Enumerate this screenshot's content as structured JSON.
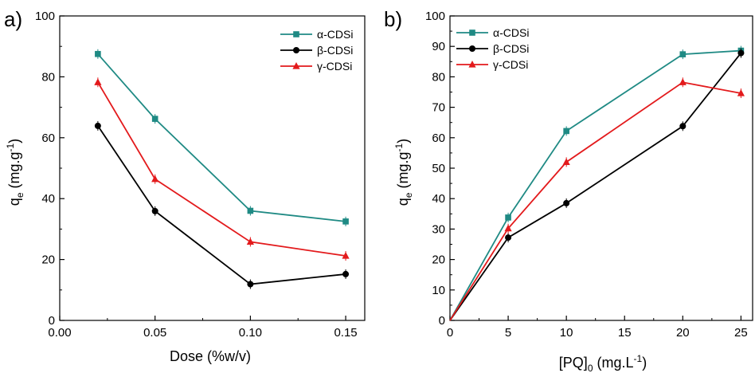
{
  "chart_data": [
    {
      "type": "line",
      "panel_label": "a)",
      "title": "",
      "xlabel": "Dose (%w/v)",
      "ylabel_main": "q",
      "ylabel_sub": "e",
      "ylabel_rest": " (mg.g",
      "ylabel_sup": "-1",
      "ylabel_close": ")",
      "xlim": [
        0.0,
        0.16
      ],
      "ylim": [
        0,
        100
      ],
      "xticks": [
        0.0,
        0.05,
        0.1,
        0.15
      ],
      "xtick_labels": [
        "0.00",
        "0.05",
        "0.10",
        "0.15"
      ],
      "yticks": [
        0,
        20,
        40,
        60,
        80,
        100
      ],
      "ytick_labels": [
        "0",
        "20",
        "40",
        "60",
        "80",
        "100"
      ],
      "legend_position": "top-right",
      "grid": false,
      "x": [
        0.02,
        0.05,
        0.1,
        0.15
      ],
      "series": [
        {
          "name": "α-CDSi",
          "color": "#1f8a84",
          "marker": "square",
          "values": [
            87.5,
            66.2,
            36.0,
            32.5
          ]
        },
        {
          "name": "β-CDSi",
          "color": "#000000",
          "marker": "circle",
          "values": [
            63.9,
            35.9,
            11.9,
            15.2
          ]
        },
        {
          "name": "γ-CDSi",
          "color": "#e31a1c",
          "marker": "triangle",
          "values": [
            78.2,
            46.4,
            25.8,
            21.2
          ]
        }
      ]
    },
    {
      "type": "line",
      "panel_label": "b)",
      "title": "",
      "xlabel_main": "[PQ]",
      "xlabel_sub": "0",
      "xlabel_rest": " (mg.L",
      "xlabel_sup": "-1",
      "xlabel_close": ")",
      "ylabel_main": "q",
      "ylabel_sub": "e",
      "ylabel_rest": " (mg.g",
      "ylabel_sup": "-1",
      "ylabel_close": ")",
      "xlim": [
        0,
        26
      ],
      "ylim": [
        0,
        100
      ],
      "xticks": [
        0,
        5,
        10,
        15,
        20,
        25
      ],
      "xtick_labels": [
        "0",
        "5",
        "10",
        "15",
        "20",
        "25"
      ],
      "yticks": [
        0,
        10,
        20,
        30,
        40,
        50,
        60,
        70,
        80,
        90,
        100
      ],
      "ytick_labels": [
        "0",
        "10",
        "20",
        "30",
        "40",
        "50",
        "60",
        "70",
        "80",
        "90",
        "100"
      ],
      "legend_position": "top-left",
      "grid": false,
      "x": [
        0,
        5,
        10,
        20,
        25
      ],
      "series": [
        {
          "name": "α-CDSi",
          "color": "#1f8a84",
          "marker": "square",
          "values": [
            0,
            33.8,
            62.2,
            87.4,
            88.6
          ]
        },
        {
          "name": "β-CDSi",
          "color": "#000000",
          "marker": "circle",
          "values": [
            0,
            27.2,
            38.5,
            63.8,
            87.8
          ]
        },
        {
          "name": "γ-CDSi",
          "color": "#e31a1c",
          "marker": "triangle",
          "values": [
            0,
            30.2,
            52.0,
            78.2,
            74.6
          ]
        }
      ]
    }
  ]
}
